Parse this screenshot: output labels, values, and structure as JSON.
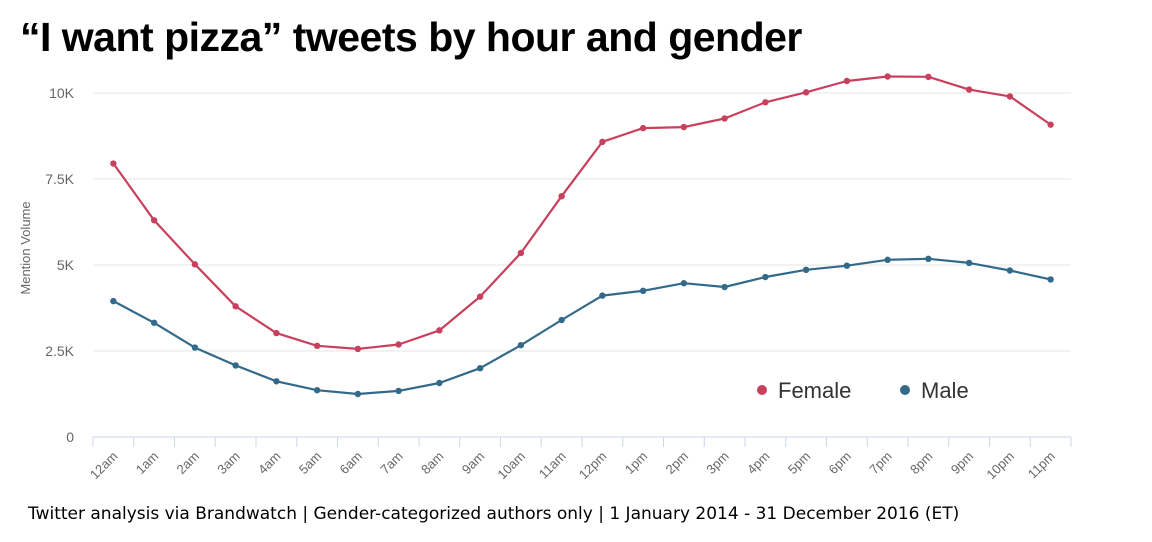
{
  "title": "“I want pizza” tweets by hour and gender",
  "footer": "Twitter analysis via Brandwatch | Gender-categorized authors only | 1 January 2014 - 31 December 2016 (ET)",
  "chart_data": {
    "type": "line",
    "title": "“I want pizza” tweets by hour and gender",
    "xlabel": "",
    "ylabel": "Mention Volume",
    "ylim": [
      0,
      10000
    ],
    "yticks": [
      0,
      2500,
      5000,
      7500,
      10000
    ],
    "ytick_labels": [
      "0",
      "2.5K",
      "5K",
      "7.5K",
      "10K"
    ],
    "categories": [
      "12am",
      "1am",
      "2am",
      "3am",
      "4am",
      "5am",
      "6am",
      "7am",
      "8am",
      "9am",
      "10am",
      "11am",
      "12pm",
      "1pm",
      "2pm",
      "3pm",
      "4pm",
      "5pm",
      "6pm",
      "7pm",
      "8pm",
      "9pm",
      "10pm",
      "11pm"
    ],
    "grid": true,
    "legend_position": "bottom-right",
    "series": [
      {
        "name": "Female",
        "color": "#c9405e",
        "values": [
          7950,
          6300,
          5020,
          3800,
          3020,
          2650,
          2560,
          2690,
          3100,
          4080,
          5350,
          7000,
          8580,
          8980,
          9010,
          9260,
          9730,
          10020,
          10350,
          10480,
          10470,
          10100,
          9900,
          9080
        ]
      },
      {
        "name": "Male",
        "color": "#336a8a",
        "values": [
          3950,
          3320,
          2600,
          2080,
          1620,
          1360,
          1250,
          1340,
          1570,
          2000,
          2670,
          3400,
          4110,
          4250,
          4470,
          4360,
          4650,
          4860,
          4980,
          5150,
          5180,
          5060,
          4840,
          4580
        ]
      }
    ]
  }
}
